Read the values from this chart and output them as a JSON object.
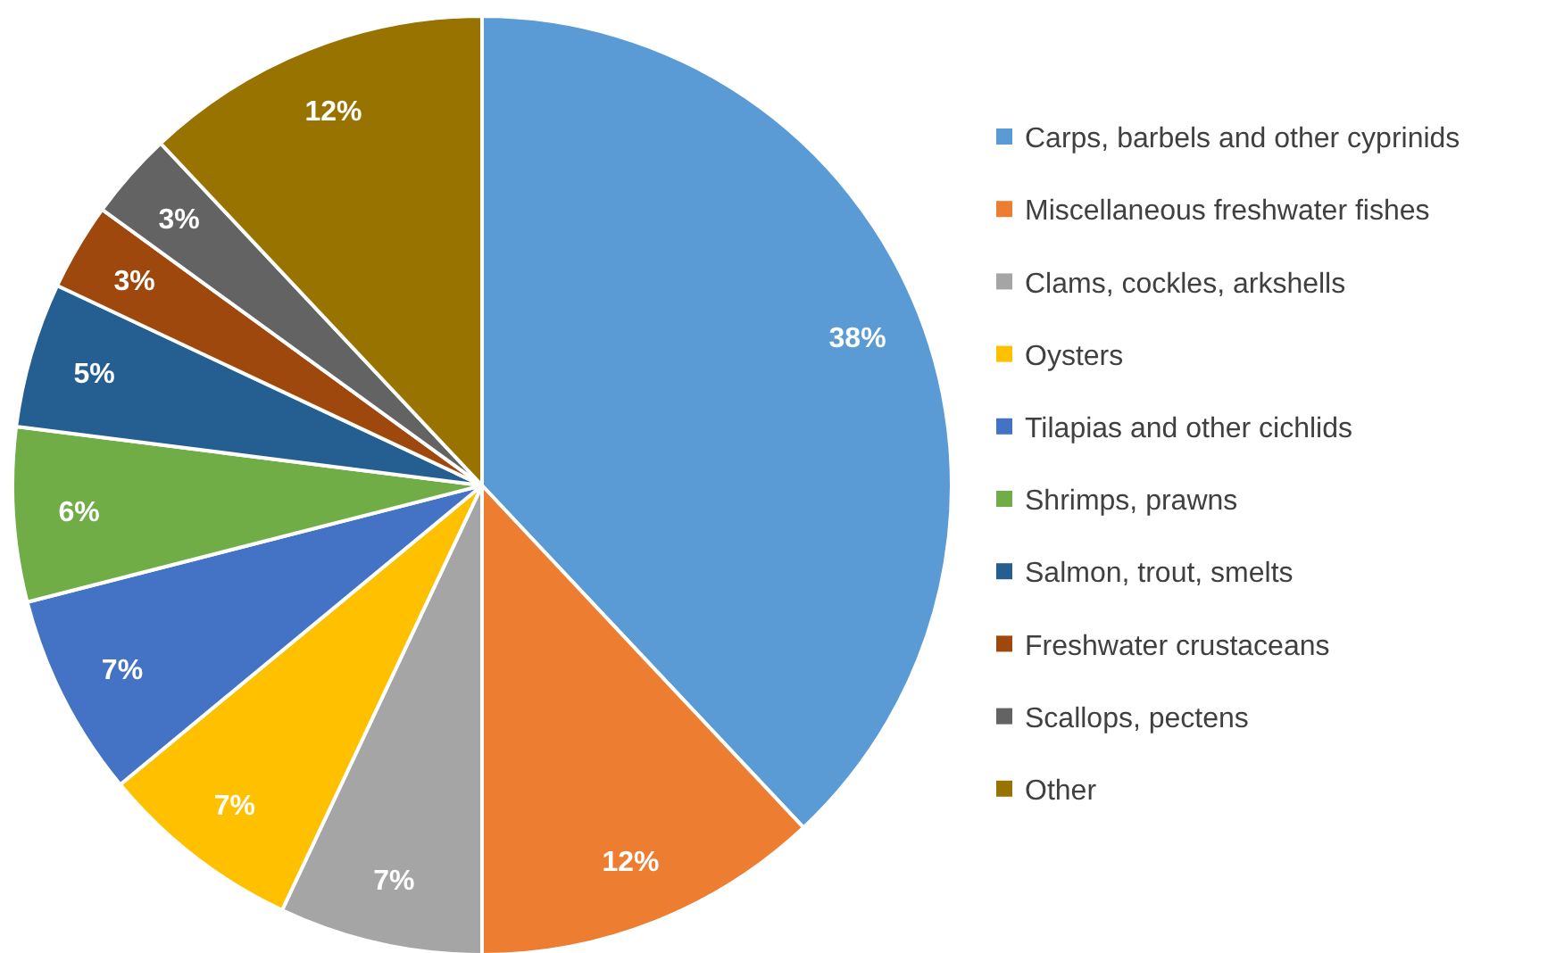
{
  "chart_data": {
    "type": "pie",
    "categories": [
      "Carps, barbels and other cyprinids",
      "Miscellaneous freshwater fishes",
      "Clams, cockles, arkshells",
      "Oysters",
      "Tilapias and other cichlids",
      "Shrimps, prawns",
      "Salmon, trout, smelts",
      "Freshwater crustaceans",
      "Scallops, pectens",
      "Other"
    ],
    "values": [
      38,
      12,
      7,
      7,
      7,
      6,
      5,
      3,
      3,
      12
    ],
    "value_labels": [
      "38%",
      "12%",
      "7%",
      "7%",
      "7%",
      "6%",
      "5%",
      "3%",
      "3%",
      "12%"
    ],
    "colors": [
      "#5b9bd5",
      "#ed7d31",
      "#a5a5a5",
      "#ffc000",
      "#4472c4",
      "#70ad47",
      "#255e91",
      "#9e480e",
      "#636363",
      "#997300"
    ],
    "legend": "right"
  }
}
